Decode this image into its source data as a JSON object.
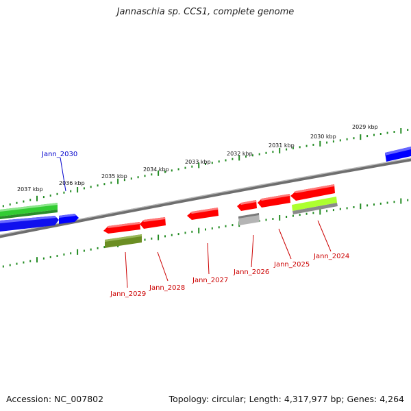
{
  "title": "Jannaschia sp. CCS1, complete genome",
  "accession": "Accession: NC_007802",
  "genome_info": "Topology: circular; Length: 4,317,977 bp; Genes: 4,264",
  "colors": {
    "backbone": "#808080",
    "tick_track": "#228b22",
    "forward_label": "#0000cc",
    "reverse_label": "#cc0000",
    "gene_red": "#ff0000",
    "gene_blue": "#0000ff",
    "gene_green": "#33cc33",
    "gene_olive": "#6b8e23",
    "gene_lime": "#adff2f",
    "gene_gray": "#b0b0b0"
  },
  "kbp_labels": [
    {
      "text": "2037 kbp"
    },
    {
      "text": "2036 kbp"
    },
    {
      "text": "2035 kbp"
    },
    {
      "text": "2034 kbp"
    },
    {
      "text": "2033 kbp"
    },
    {
      "text": "2032 kbp"
    },
    {
      "text": "2031 kbp"
    },
    {
      "text": "2030 kbp"
    },
    {
      "text": "2029 kbp"
    }
  ],
  "gene_labels": [
    {
      "text": "Jann_2030",
      "strand": "forward"
    },
    {
      "text": "Jann_2029",
      "strand": "reverse"
    },
    {
      "text": "Jann_2028",
      "strand": "reverse"
    },
    {
      "text": "Jann_2027",
      "strand": "reverse"
    },
    {
      "text": "Jann_2026",
      "strand": "reverse"
    },
    {
      "text": "Jann_2025",
      "strand": "reverse"
    },
    {
      "text": "Jann_2024",
      "strand": "reverse"
    }
  ]
}
